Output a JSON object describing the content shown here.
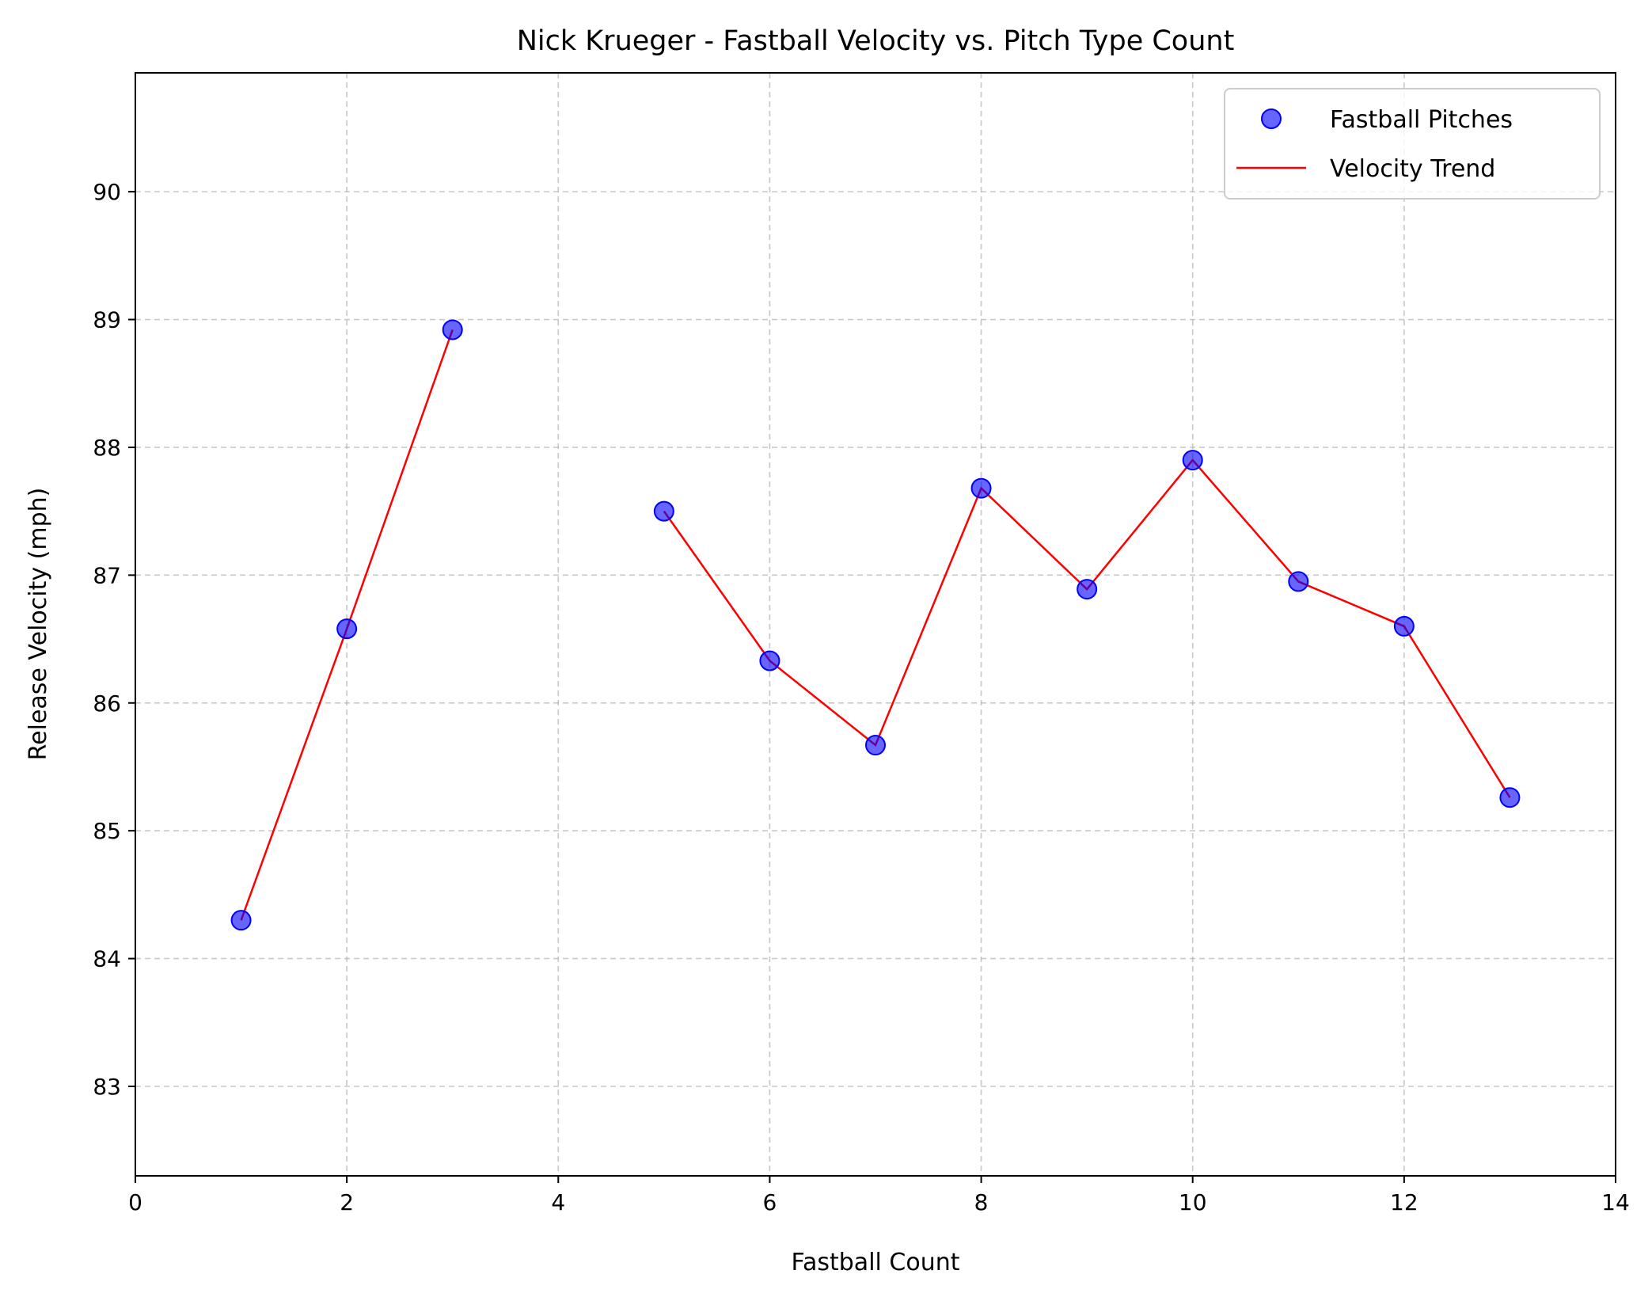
{
  "chart_data": {
    "type": "scatter",
    "title": "Nick Krueger - Fastball Velocity vs. Pitch Type Count",
    "xlabel": "Fastball Count",
    "ylabel": "Release Velocity (mph)",
    "xlim": [
      0,
      14
    ],
    "ylim": [
      82.3,
      90.93
    ],
    "xticks": [
      0,
      2,
      4,
      6,
      8,
      10,
      12,
      14
    ],
    "yticks": [
      83,
      84,
      85,
      86,
      87,
      88,
      89,
      90
    ],
    "grid": true,
    "legend_position": "top-right",
    "series": [
      {
        "name": "Fastball Pitches",
        "kind": "scatter",
        "color": "#0000ff",
        "points": [
          {
            "x": 1,
            "y": 84.3
          },
          {
            "x": 2,
            "y": 86.58
          },
          {
            "x": 3,
            "y": 88.92
          },
          {
            "x": 5,
            "y": 87.5
          },
          {
            "x": 6,
            "y": 86.33
          },
          {
            "x": 7,
            "y": 85.67
          },
          {
            "x": 8,
            "y": 87.68
          },
          {
            "x": 9,
            "y": 86.89
          },
          {
            "x": 10,
            "y": 87.9
          },
          {
            "x": 11,
            "y": 86.95
          },
          {
            "x": 12,
            "y": 86.6
          },
          {
            "x": 13,
            "y": 85.26
          }
        ]
      },
      {
        "name": "Velocity Trend",
        "kind": "line",
        "color": "#ff0000",
        "segments": [
          [
            {
              "x": 1,
              "y": 84.3
            },
            {
              "x": 2,
              "y": 86.58
            },
            {
              "x": 3,
              "y": 88.92
            }
          ],
          [
            {
              "x": 5,
              "y": 87.5
            },
            {
              "x": 6,
              "y": 86.33
            },
            {
              "x": 7,
              "y": 85.67
            },
            {
              "x": 8,
              "y": 87.68
            },
            {
              "x": 9,
              "y": 86.89
            },
            {
              "x": 10,
              "y": 87.9
            },
            {
              "x": 11,
              "y": 86.95
            },
            {
              "x": 12,
              "y": 86.6
            },
            {
              "x": 13,
              "y": 85.26
            }
          ]
        ]
      }
    ]
  }
}
